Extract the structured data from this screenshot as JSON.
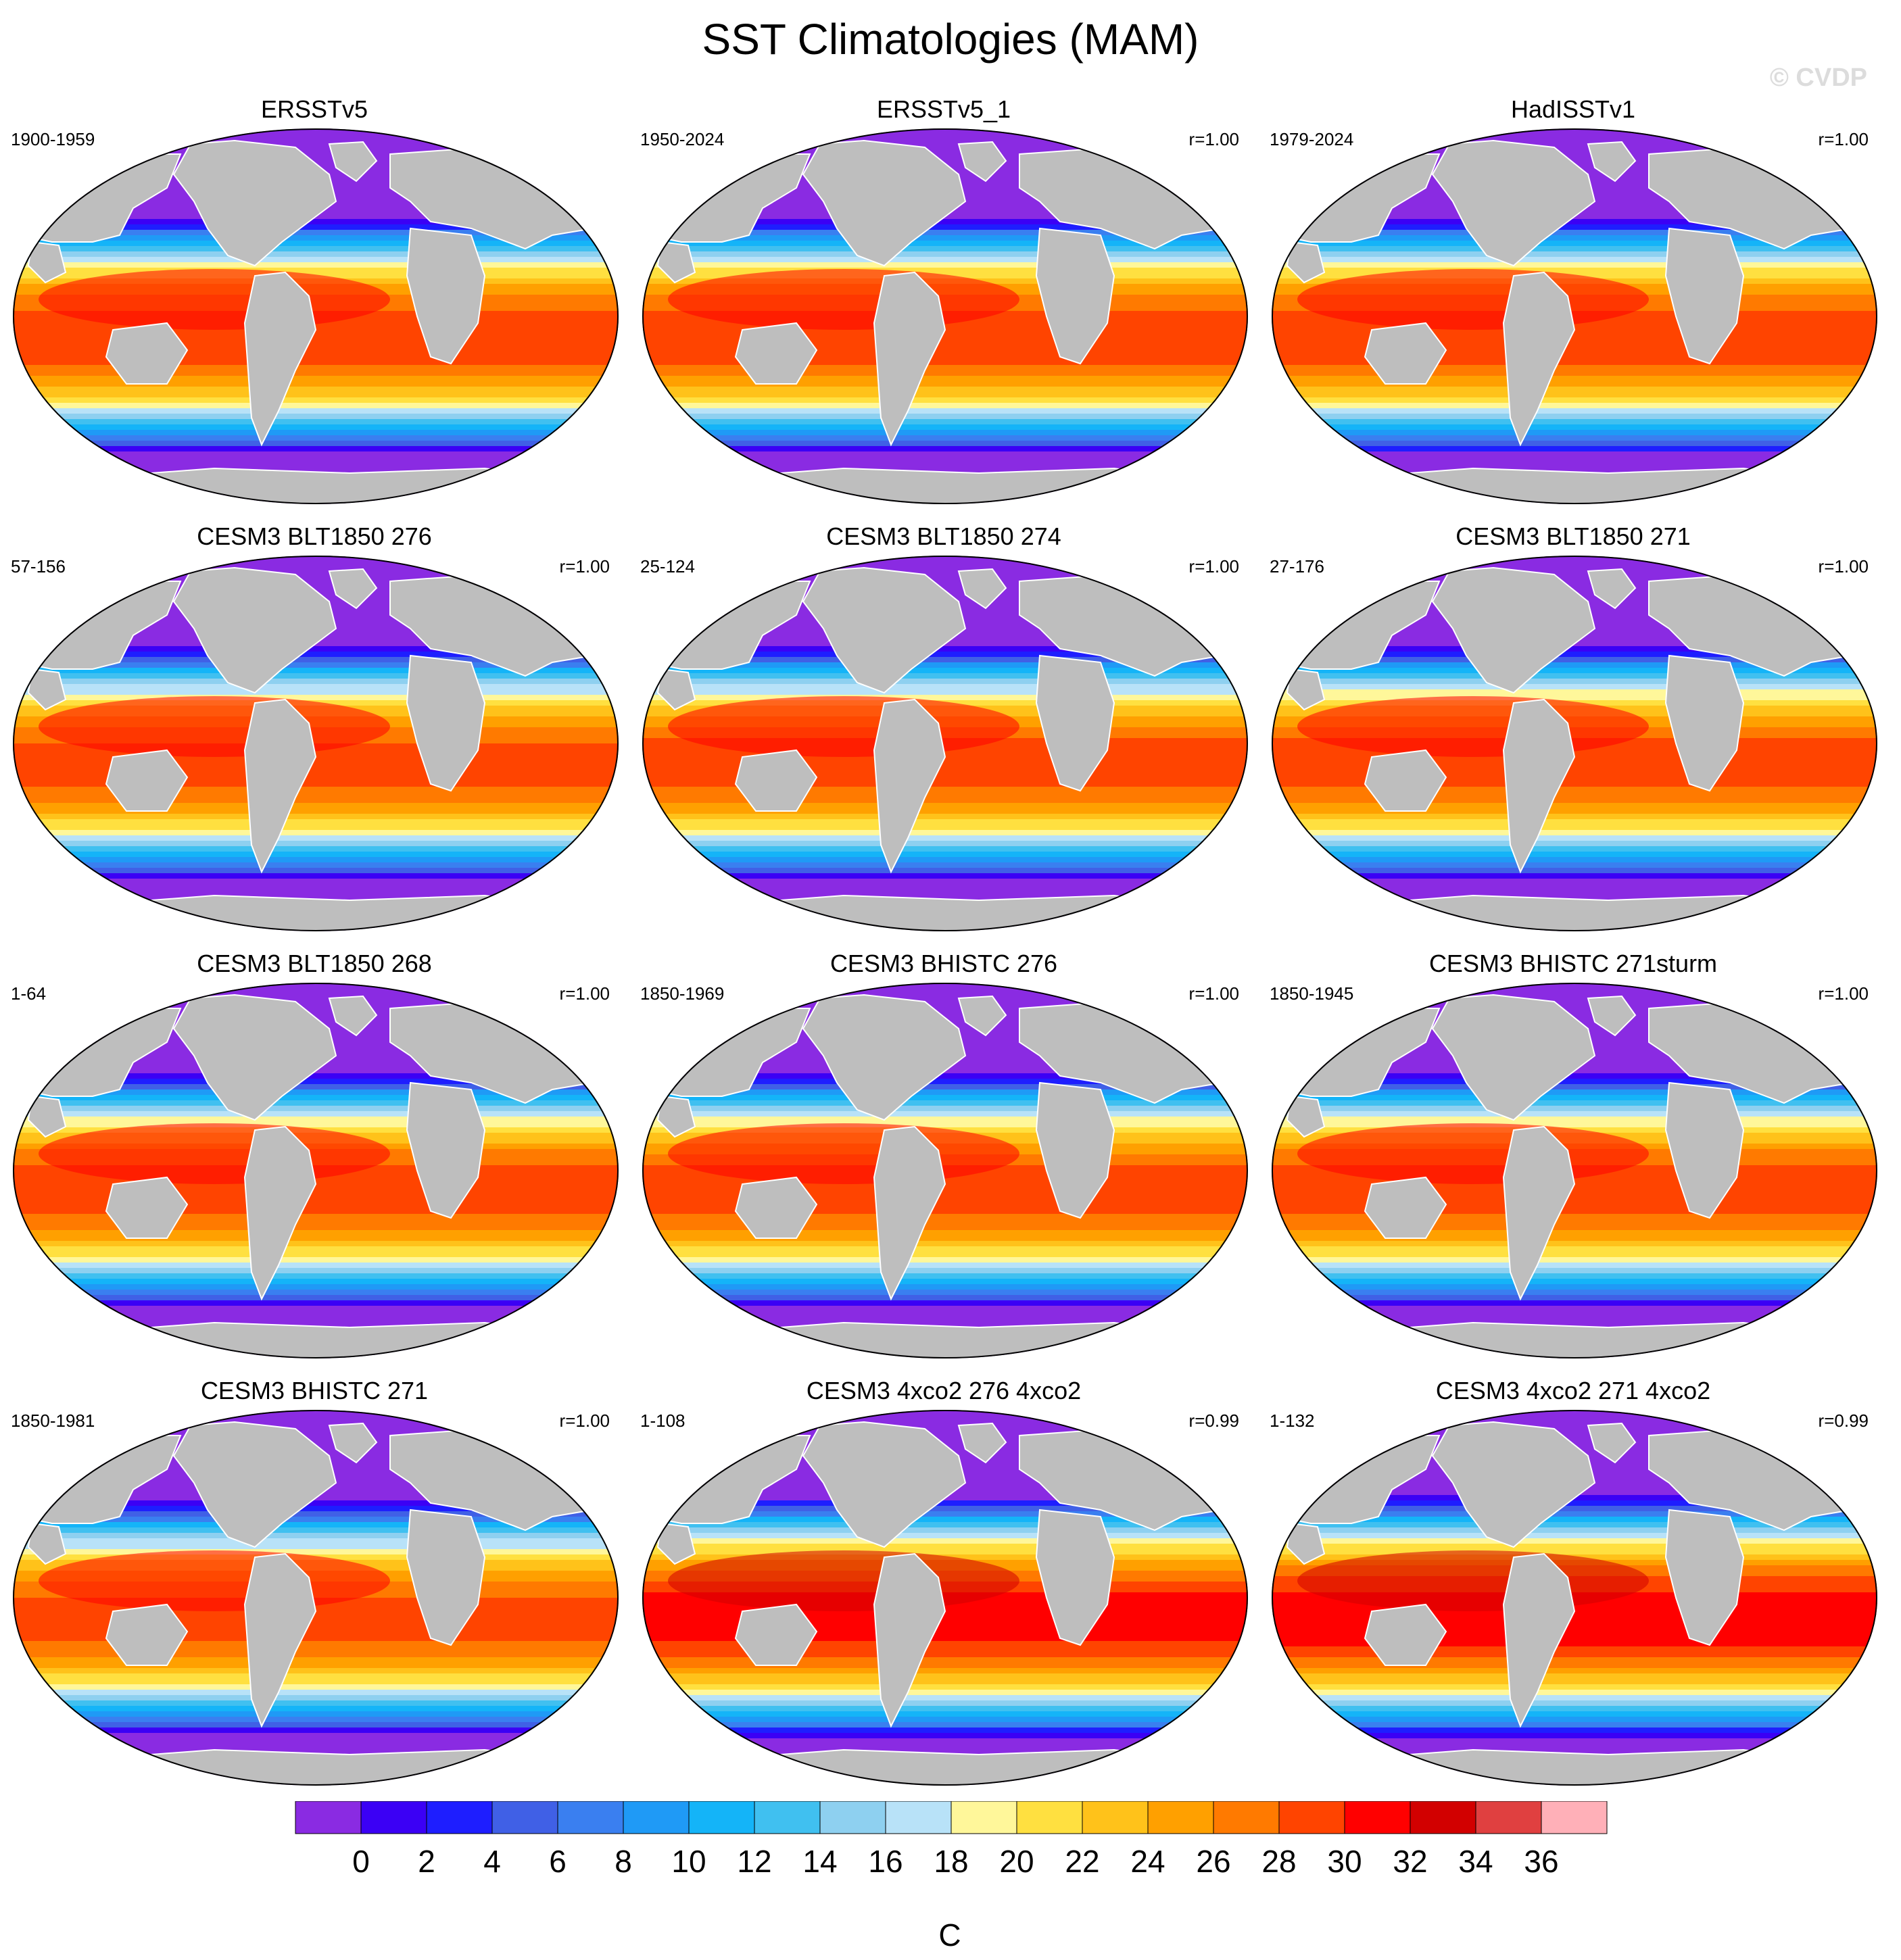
{
  "figure": {
    "title": "SST Climatologies (MAM)",
    "watermark": "© CVDP"
  },
  "panels": [
    {
      "title": "ERSSTv5",
      "period": "1900-1959",
      "corr": "",
      "warmth": 0.42
    },
    {
      "title": "ERSSTv5_1",
      "period": "1950-2024",
      "corr": "r=1.00",
      "warmth": 0.42
    },
    {
      "title": "HadISSTv1",
      "period": "1979-2024",
      "corr": "r=1.00",
      "warmth": 0.45
    },
    {
      "title": "CESM3 BLT1850 276",
      "period": "57-156",
      "corr": "r=1.00",
      "warmth": 0.3
    },
    {
      "title": "CESM3 BLT1850 274",
      "period": "25-124",
      "corr": "r=1.00",
      "warmth": 0.32
    },
    {
      "title": "CESM3 BLT1850 271",
      "period": "27-176",
      "corr": "r=1.00",
      "warmth": 0.35
    },
    {
      "title": "CESM3 BLT1850 268",
      "period": "1-64",
      "corr": "r=1.00",
      "warmth": 0.38
    },
    {
      "title": "CESM3 BHISTC 276",
      "period": "1850-1969",
      "corr": "r=1.00",
      "warmth": 0.33
    },
    {
      "title": "CESM3 BHISTC 271sturm",
      "period": "1850-1945",
      "corr": "r=1.00",
      "warmth": 0.38
    },
    {
      "title": "CESM3 BHISTC 271",
      "period": "1850-1981",
      "corr": "r=1.00",
      "warmth": 0.3
    },
    {
      "title": "CESM3 4xco2 276 4xco2",
      "period": "1-108",
      "corr": "r=0.99",
      "warmth": 0.85
    },
    {
      "title": "CESM3 4xco2 271 4xco2",
      "period": "1-132",
      "corr": "r=0.99",
      "warmth": 0.9
    }
  ],
  "colorbar": {
    "unit": "C",
    "tick_labels": [
      "0",
      "2",
      "4",
      "6",
      "8",
      "10",
      "12",
      "14",
      "16",
      "18",
      "20",
      "22",
      "24",
      "26",
      "28",
      "30",
      "32",
      "34",
      "36"
    ],
    "colors": [
      "#8a2be2",
      "#3b00f5",
      "#1e1eff",
      "#4060e6",
      "#3a7ff0",
      "#1f9af6",
      "#14b4f8",
      "#40c0f0",
      "#8ed0f0",
      "#b8e2f8",
      "#fff79a",
      "#ffe040",
      "#ffc21a",
      "#ffa000",
      "#ff7a00",
      "#ff4400",
      "#ff0000",
      "#d20000",
      "#e04040",
      "#ffb0b8"
    ],
    "land_color": "#bebebe"
  }
}
